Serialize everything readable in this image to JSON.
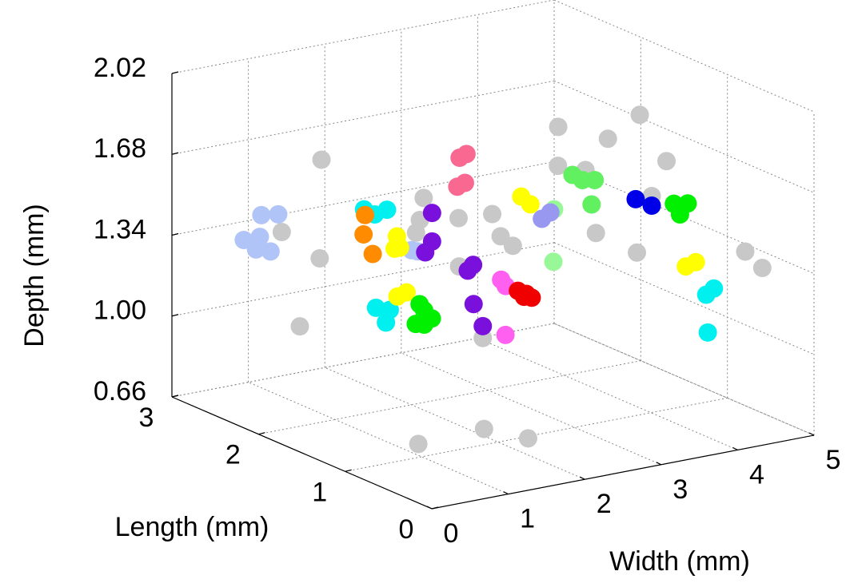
{
  "chart_data": {
    "type": "scatter3d",
    "xlabel": "Width (mm)",
    "ylabel": "Length (mm)",
    "zlabel": "Depth (mm)",
    "xlim": [
      0,
      5
    ],
    "ylim": [
      0,
      3
    ],
    "zlim": [
      0.66,
      2.02
    ],
    "xticks": [
      0,
      1,
      2,
      3,
      4,
      5
    ],
    "yticks": [
      0,
      1,
      2,
      3
    ],
    "zticks": [
      0.66,
      {
        "value": 1,
        "label": "1.00"
      },
      1.34,
      1.68,
      2.02
    ],
    "grid": true,
    "series": [
      {
        "color": "#c8c8c8",
        "x": [
          1.39,
          1.21,
          0.8,
          0.54,
          2.16,
          2.11,
          2.06,
          2.05,
          2.49,
          2.6,
          2.76,
          1.49,
          1.8,
          3.92,
          4.57,
          4.76,
          3.35,
          3.71,
          4.43,
          4.01,
          3.28,
          3.59,
          4.44,
          4.55,
          0.39,
          1.25,
          1.6
        ],
        "y": [
          2.5,
          2.8,
          2,
          2,
          2,
          2,
          2,
          1.5,
          1.5,
          1.5,
          1.5,
          1,
          1,
          2,
          2,
          1.8,
          1.5,
          1.5,
          1.2,
          1,
          1,
          0.8,
          0.3,
          0.2,
          0.5,
          0.5,
          0.3
        ],
        "z": [
          1.65,
          1.31,
          1.35,
          1.08,
          1.52,
          1.43,
          1.38,
          1.52,
          1.51,
          1.41,
          1.36,
          1.43,
          1.11,
          1.71,
          1.62,
          1.74,
          1.66,
          1.62,
          1.66,
          1.57,
          1.46,
          1.39,
          1.42,
          1.36,
          0.83,
          0.84,
          0.81
        ]
      },
      {
        "color": "#b0c4f8",
        "x": [
          0.83,
          1.05,
          0.6,
          0.81,
          0.76,
          0.95,
          2.0,
          2.08
        ],
        "y": [
          2.7,
          2.7,
          2.7,
          2.7,
          2.7,
          2.7,
          2,
          2
        ],
        "z": [
          1.42,
          1.41,
          1.33,
          1.33,
          1.28,
          1.26,
          1.31,
          1.3
        ]
      },
      {
        "color": "#00f0f0",
        "x": [
          1.38,
          1.52,
          1.68,
          0.97,
          1.15,
          1.1,
          4.03,
          3.93,
          3.95
        ],
        "y": [
          2,
          2,
          2,
          1.5,
          1.5,
          1.5,
          0.3,
          0.3,
          0.3
        ],
        "z": [
          1.52,
          1.49,
          1.5,
          1.21,
          1.19,
          1.14,
          1.29,
          1.27,
          1.11
        ]
      },
      {
        "color": "#ff8c00",
        "x": [
          1.62,
          1.6,
          1.72
        ],
        "y": [
          2.2,
          2.2,
          2.2
        ],
        "z": [
          1.45,
          1.37,
          1.28
        ]
      },
      {
        "color": "#ffff00",
        "x": [
          1.81,
          1.85,
          1.78,
          1.25,
          1.37,
          2.87,
          2.99,
          3.89,
          4.02
        ],
        "y": [
          2,
          2,
          2,
          1.5,
          1.5,
          1.5,
          1.5,
          0.5,
          0.5
        ],
        "z": [
          1.38,
          1.33,
          1.33,
          1.24,
          1.25,
          1.56,
          1.52,
          1.36,
          1.37
        ]
      },
      {
        "color": "#7a10dc",
        "x": [
          2.27,
          2.27,
          2.18,
          1.9,
          1.83,
          1.68,
          1.8
        ],
        "y": [
          2,
          2,
          2,
          1.2,
          1.2,
          1,
          1
        ],
        "z": [
          1.45,
          1.33,
          1.29,
          1.38,
          1.36,
          1.26,
          1.16
        ]
      },
      {
        "color": "#f86890",
        "x": [
          2.63,
          2.72,
          2.6,
          2.7
        ],
        "y": [
          2,
          2,
          2,
          2
        ],
        "z": [
          1.66,
          1.67,
          1.54,
          1.55
        ]
      },
      {
        "color": "#ff60f0",
        "x": [
          2.04,
          2.1,
          1.87
        ],
        "y": [
          1,
          1,
          0.8
        ],
        "z": [
          1.34,
          1.31,
          1.15
        ]
      },
      {
        "color": "#f00000",
        "x": [
          2.26,
          2.37,
          2.44,
          2.34
        ],
        "y": [
          1,
          1,
          1,
          1
        ],
        "z": [
          1.28,
          1.26,
          1.24,
          1.25
        ]
      },
      {
        "color": "#60f060",
        "x": [
          3.54,
          3.67,
          3.83,
          3.79
        ],
        "y": [
          1.5,
          1.5,
          1.5,
          1.5
        ],
        "z": [
          1.61,
          1.58,
          1.57,
          1.47
        ]
      },
      {
        "color": "#98f898",
        "x": [
          3.3,
          3.29
        ],
        "y": [
          1.5,
          1.5
        ],
        "z": [
          1.48,
          1.26
        ]
      },
      {
        "color": "#00f000",
        "x": [
          1.54,
          1.6,
          1.49,
          1.6,
          1.7,
          4.3,
          4.48,
          4.38
        ],
        "y": [
          1.5,
          1.5,
          1.5,
          1.5,
          1.5,
          1,
          1,
          1
        ],
        "z": [
          1.19,
          1.16,
          1.11,
          1.1,
          1.12,
          1.52,
          1.51,
          1.47
        ]
      },
      {
        "color": "#0000e8",
        "x": [
          3.8,
          4.01
        ],
        "y": [
          1,
          1
        ],
        "z": [
          1.57,
          1.53
        ]
      },
      {
        "color": "#9898f0",
        "x": [
          3.14,
          3.25
        ],
        "y": [
          1.5,
          1.5
        ],
        "z": [
          1.45,
          1.47
        ]
      }
    ]
  }
}
